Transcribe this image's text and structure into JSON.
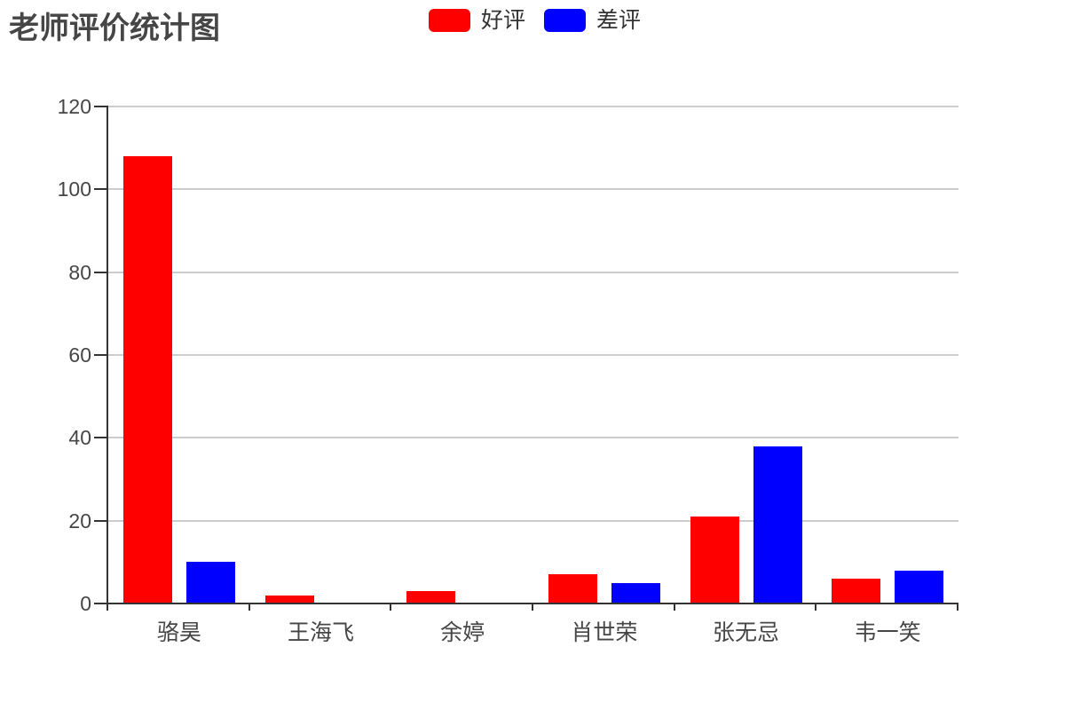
{
  "chart_data": {
    "type": "bar",
    "title": "老师评价统计图",
    "categories": [
      "骆昊",
      "王海飞",
      "余婷",
      "肖世荣",
      "张无忌",
      "韦一笑"
    ],
    "series": [
      {
        "name": "好评",
        "color": "#ff0000",
        "values": [
          108,
          2,
          3,
          7,
          21,
          6
        ]
      },
      {
        "name": "差评",
        "color": "#0000ff",
        "values": [
          10,
          0,
          0,
          5,
          38,
          8
        ]
      }
    ],
    "xlabel": "",
    "ylabel": "",
    "ylim": [
      0,
      120
    ],
    "ytick_interval": 20,
    "yticks": [
      0,
      20,
      40,
      60,
      80,
      100,
      120
    ],
    "grid": true,
    "legend_position": "top-center",
    "axis_color": "#333333",
    "grid_color": "#cccccc",
    "tick_label_color": "#464646",
    "title_color": "#464646"
  }
}
